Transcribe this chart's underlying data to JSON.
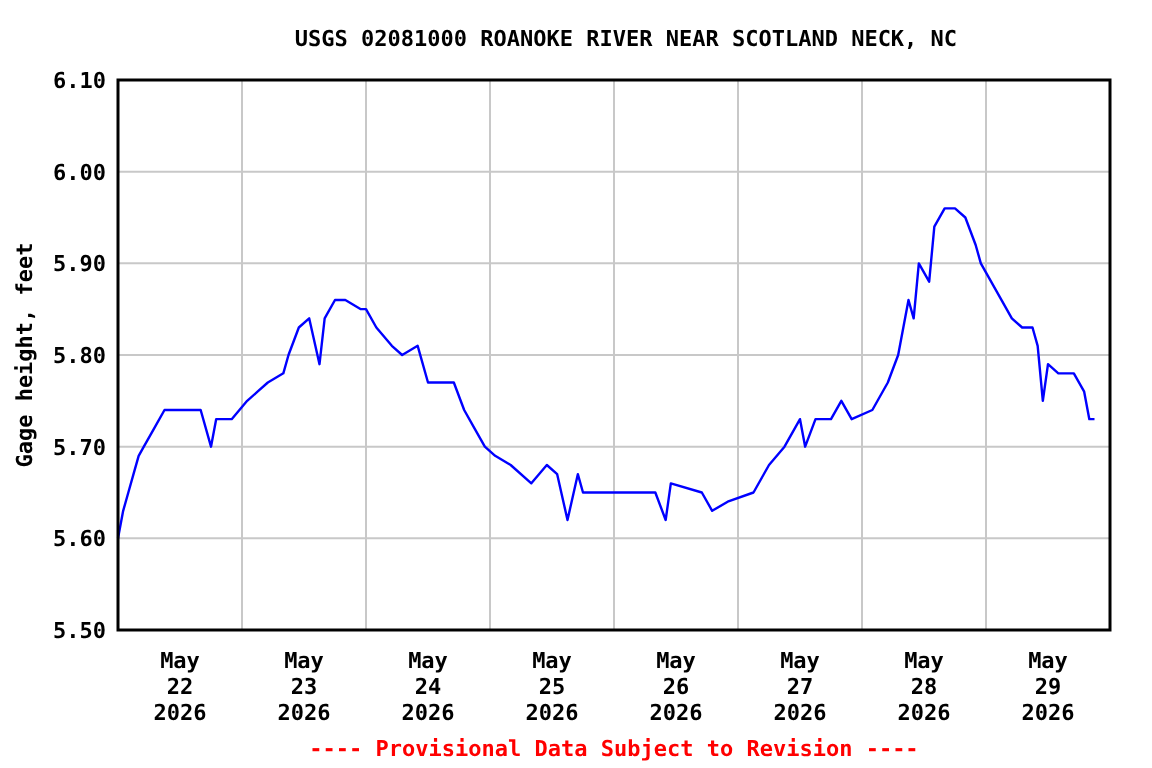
{
  "chart_data": {
    "type": "line",
    "title": "USGS 02081000 ROANOKE RIVER NEAR SCOTLAND NECK, NC",
    "ylabel": "Gage height, feet",
    "annotations": [
      "---- Provisional Data Subject to Revision ----"
    ],
    "x": [
      "2026-05-22T00:00",
      "2026-05-22T01:00",
      "2026-05-22T02:00",
      "2026-05-22T03:00",
      "2026-05-22T04:00",
      "2026-05-22T05:00",
      "2026-05-22T07:00",
      "2026-05-22T09:00",
      "2026-05-22T16:00",
      "2026-05-22T18:00",
      "2026-05-22T19:00",
      "2026-05-22T22:00",
      "2026-05-23T01:00",
      "2026-05-23T03:00",
      "2026-05-23T05:00",
      "2026-05-23T08:00",
      "2026-05-23T09:00",
      "2026-05-23T11:00",
      "2026-05-23T13:00",
      "2026-05-23T15:00",
      "2026-05-23T16:00",
      "2026-05-23T18:00",
      "2026-05-23T20:00",
      "2026-05-23T23:00",
      "2026-05-24T00:00",
      "2026-05-24T02:00",
      "2026-05-24T05:00",
      "2026-05-24T07:00",
      "2026-05-24T10:00",
      "2026-05-24T12:00",
      "2026-05-24T15:00",
      "2026-05-24T17:00",
      "2026-05-24T19:00",
      "2026-05-24T21:00",
      "2026-05-24T23:00",
      "2026-05-25T01:00",
      "2026-05-25T04:00",
      "2026-05-25T08:00",
      "2026-05-25T11:00",
      "2026-05-25T13:00",
      "2026-05-25T15:00",
      "2026-05-25T17:00",
      "2026-05-25T18:00",
      "2026-05-26T03:00",
      "2026-05-26T08:00",
      "2026-05-26T10:00",
      "2026-05-26T11:00",
      "2026-05-26T17:00",
      "2026-05-26T19:00",
      "2026-05-26T22:00",
      "2026-05-27T03:00",
      "2026-05-27T06:00",
      "2026-05-27T09:00",
      "2026-05-27T12:00",
      "2026-05-27T13:00",
      "2026-05-27T15:00",
      "2026-05-27T18:00",
      "2026-05-27T20:00",
      "2026-05-27T22:00",
      "2026-05-28T02:00",
      "2026-05-28T05:00",
      "2026-05-28T07:00",
      "2026-05-28T08:00",
      "2026-05-28T09:00",
      "2026-05-28T10:00",
      "2026-05-28T11:00",
      "2026-05-28T13:00",
      "2026-05-28T14:00",
      "2026-05-28T16:00",
      "2026-05-28T18:00",
      "2026-05-28T20:00",
      "2026-05-28T22:00",
      "2026-05-28T23:00",
      "2026-05-29T02:00",
      "2026-05-29T05:00",
      "2026-05-29T07:00",
      "2026-05-29T09:00",
      "2026-05-29T10:00",
      "2026-05-29T11:00",
      "2026-05-29T12:00",
      "2026-05-29T14:00",
      "2026-05-29T17:00",
      "2026-05-29T19:00",
      "2026-05-29T20:00",
      "2026-05-29T21:00"
    ],
    "series": [
      {
        "color": "#0000ff",
        "values": [
          5.6,
          5.63,
          5.65,
          5.67,
          5.69,
          5.7,
          5.72,
          5.74,
          5.74,
          5.7,
          5.73,
          5.73,
          5.75,
          5.76,
          5.77,
          5.78,
          5.8,
          5.83,
          5.84,
          5.79,
          5.84,
          5.86,
          5.86,
          5.85,
          5.85,
          5.83,
          5.81,
          5.8,
          5.81,
          5.77,
          5.77,
          5.77,
          5.74,
          5.72,
          5.7,
          5.69,
          5.68,
          5.66,
          5.68,
          5.67,
          5.62,
          5.67,
          5.65,
          5.65,
          5.65,
          5.62,
          5.66,
          5.65,
          5.63,
          5.64,
          5.65,
          5.68,
          5.7,
          5.73,
          5.7,
          5.73,
          5.73,
          5.75,
          5.73,
          5.74,
          5.77,
          5.8,
          5.83,
          5.86,
          5.84,
          5.9,
          5.88,
          5.94,
          5.96,
          5.96,
          5.95,
          5.92,
          5.9,
          5.87,
          5.84,
          5.83,
          5.83,
          5.81,
          5.75,
          5.79,
          5.78,
          5.78,
          5.76,
          5.73,
          5.73
        ]
      }
    ],
    "xlim": [
      "2026-05-22T00:00",
      "2026-05-30T00:00"
    ],
    "xticks": [
      {
        "value": "2026-05-22T00:00",
        "label": null
      },
      {
        "value": "2026-05-22T12:00",
        "label": "May\n22\n2026"
      },
      {
        "value": "2026-05-23T00:00",
        "label": null
      },
      {
        "value": "2026-05-23T12:00",
        "label": "May\n23\n2026"
      },
      {
        "value": "2026-05-24T00:00",
        "label": null
      },
      {
        "value": "2026-05-24T12:00",
        "label": "May\n24\n2026"
      },
      {
        "value": "2026-05-25T00:00",
        "label": null
      },
      {
        "value": "2026-05-25T12:00",
        "label": "May\n25\n2026"
      },
      {
        "value": "2026-05-26T00:00",
        "label": null
      },
      {
        "value": "2026-05-26T12:00",
        "label": "May\n26\n2026"
      },
      {
        "value": "2026-05-27T00:00",
        "label": null
      },
      {
        "value": "2026-05-27T12:00",
        "label": "May\n27\n2026"
      },
      {
        "value": "2026-05-28T00:00",
        "label": null
      },
      {
        "value": "2026-05-28T12:00",
        "label": "May\n28\n2026"
      },
      {
        "value": "2026-05-29T00:00",
        "label": null
      },
      {
        "value": "2026-05-29T12:00",
        "label": "May\n29\n2026"
      },
      {
        "value": "2026-05-30T00:00",
        "label": null
      }
    ],
    "ylim": [
      5.5,
      6.1
    ],
    "yticks": [
      {
        "value": 5.5,
        "label": "5.50"
      },
      {
        "value": 5.6,
        "label": "5.60"
      },
      {
        "value": 5.7,
        "label": "5.70"
      },
      {
        "value": 5.8,
        "label": "5.80"
      },
      {
        "value": 5.9,
        "label": "5.90"
      },
      {
        "value": 6.0,
        "label": "6.00"
      },
      {
        "value": 6.1,
        "label": "6.10"
      }
    ],
    "grid": true
  }
}
